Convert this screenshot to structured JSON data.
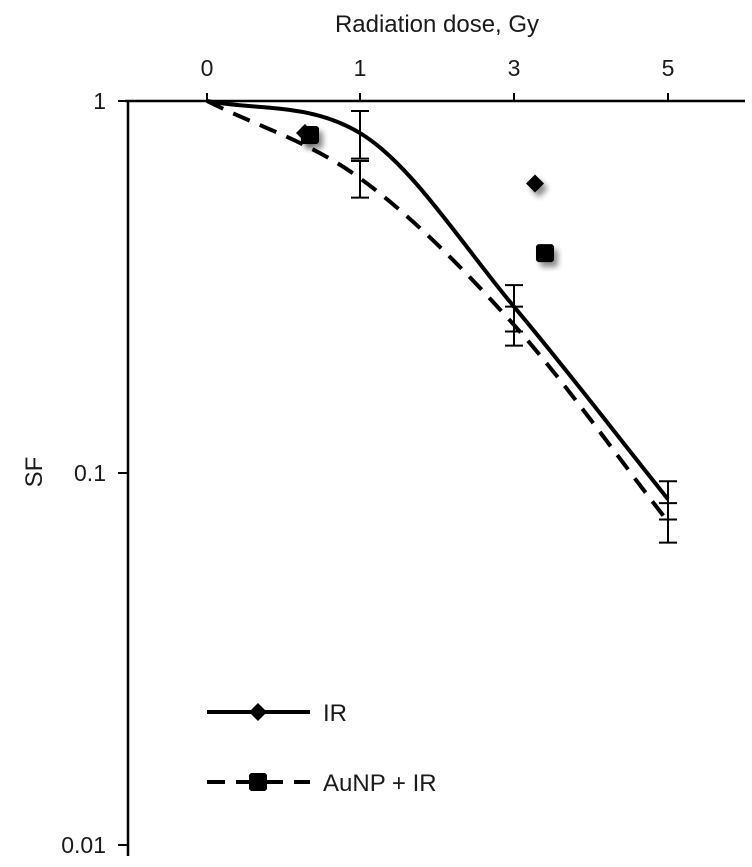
{
  "chart_data": {
    "type": "line",
    "xlabel": "Radiation dose, Gy",
    "ylabel": "SF",
    "x_scale": "categorical",
    "x_ticks": [
      "0",
      "1",
      "3",
      "5"
    ],
    "y_scale": "log",
    "ylim": [
      0.01,
      1
    ],
    "y_ticks": [
      "1",
      "0.1",
      "0.01"
    ],
    "grid": false,
    "legend_position": "bottom-left",
    "series": [
      {
        "name": "IR",
        "style": "solid",
        "marker": "diamond",
        "color": "#000000",
        "x": [
          "0",
          "1",
          "3",
          "5"
        ],
        "y": [
          1.0,
          0.82,
          0.28,
          0.085
        ],
        "error": [
          0,
          0.12,
          0.04,
          0.01
        ]
      },
      {
        "name": "AuNP + IR",
        "style": "dashed",
        "marker": "square",
        "color": "#000000",
        "x": [
          "0",
          "1",
          "3",
          "5"
        ],
        "y": [
          1.0,
          0.62,
          0.25,
          0.074
        ],
        "error": [
          0,
          0.07,
          0.03,
          0.009
        ]
      }
    ],
    "stray_markers": [
      {
        "series": "AuNP + IR",
        "marker": "square",
        "y": 0.81
      },
      {
        "series": "IR",
        "marker": "diamond",
        "y": 0.6
      },
      {
        "series": "AuNP + IR",
        "marker": "square",
        "y": 0.39
      }
    ]
  }
}
